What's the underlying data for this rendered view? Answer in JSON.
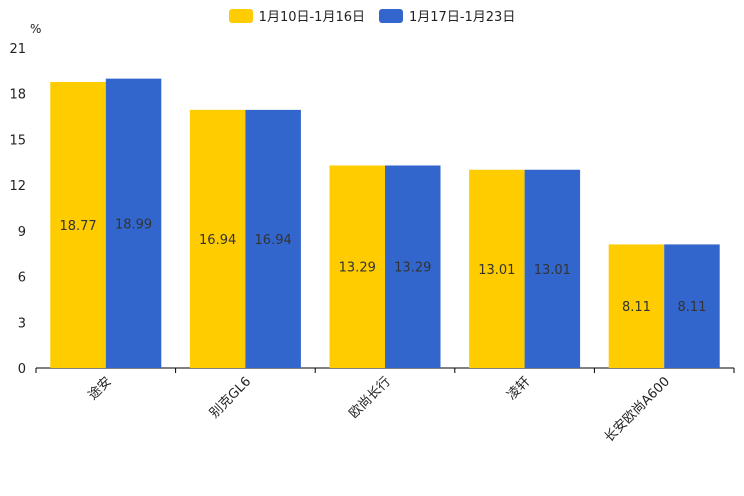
{
  "chart_data": {
    "type": "bar",
    "unit_label": "%",
    "categories": [
      "途安",
      "别克GL6",
      "欧尚长行",
      "凌轩",
      "长安欧尚A600"
    ],
    "series": [
      {
        "name": "1月10日-1月16日",
        "color": "#FFCC00",
        "values": [
          18.77,
          16.94,
          13.29,
          13.01,
          8.11
        ]
      },
      {
        "name": "1月17日-1月23日",
        "color": "#3366CC",
        "values": [
          18.99,
          16.94,
          13.29,
          13.01,
          8.11
        ]
      }
    ],
    "yticks": [
      0,
      3,
      6,
      9,
      12,
      15,
      18,
      21
    ],
    "ylim": [
      0,
      21
    ],
    "legend_position": "top-center"
  }
}
